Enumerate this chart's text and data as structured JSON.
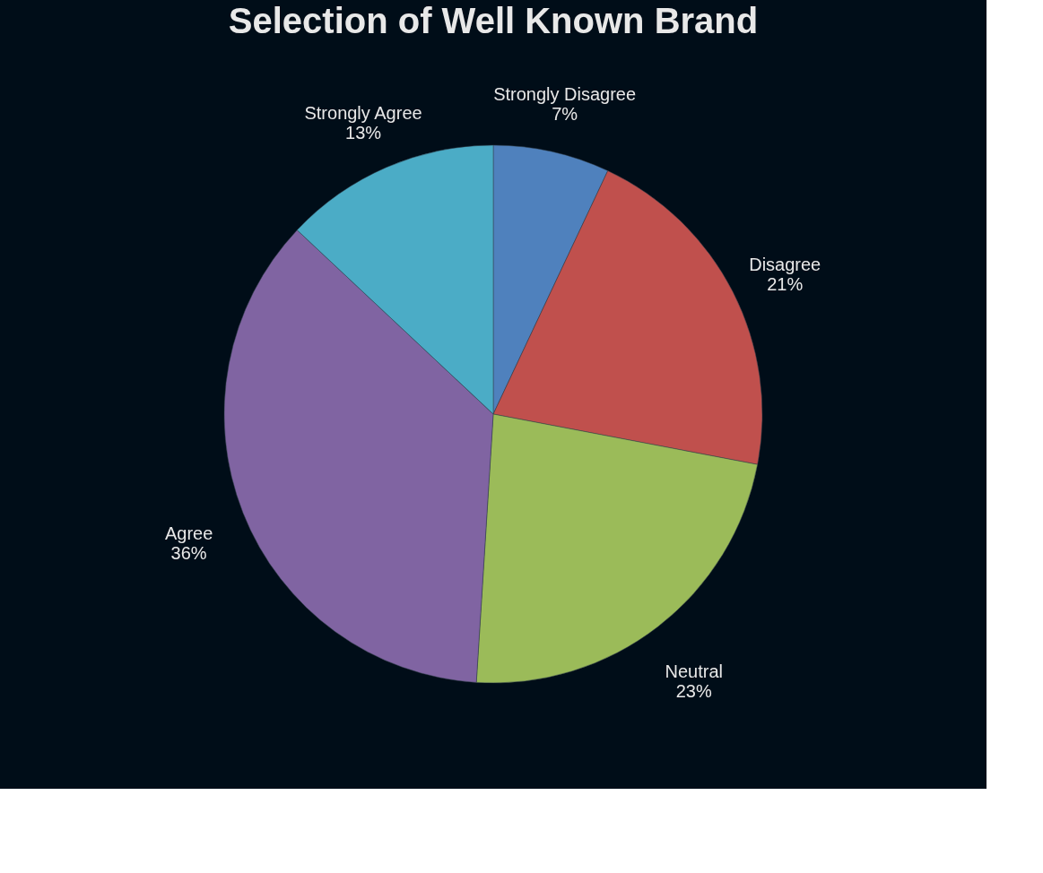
{
  "chart_data": {
    "type": "pie",
    "title": "Selection of Well Known Brand",
    "categories": [
      "Strongly Disagree",
      "Disagree",
      "Neutral",
      "Agree",
      "Strongly Agree"
    ],
    "values": [
      7,
      21,
      23,
      36,
      13
    ],
    "value_labels": [
      "7%",
      "21%",
      "23%",
      "36%",
      "13%"
    ],
    "colors": [
      "#4f81bd",
      "#c0504d",
      "#9bbb59",
      "#8064a2",
      "#4bacc6"
    ],
    "legend": false
  }
}
